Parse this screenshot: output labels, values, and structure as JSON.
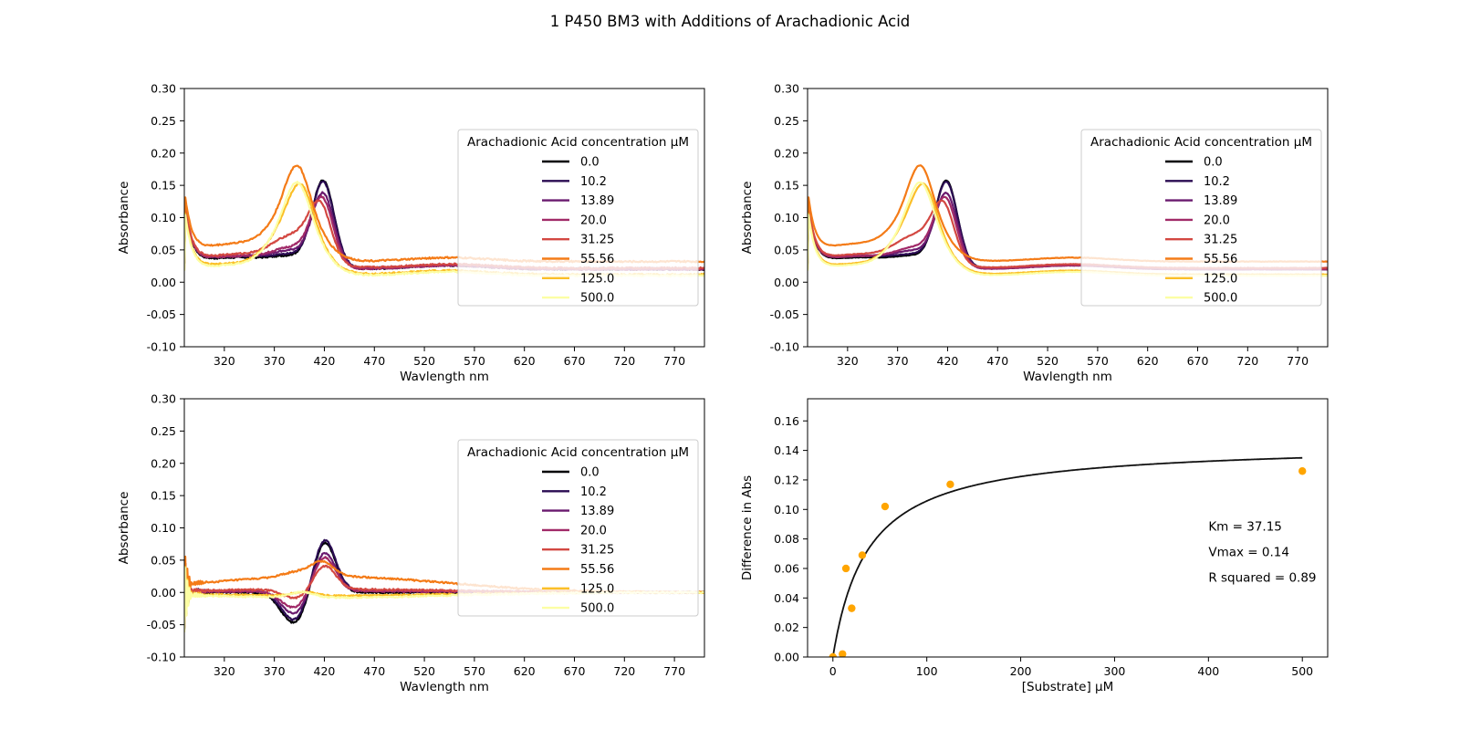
{
  "figure": {
    "title": "1 P450 BM3 with Additions of Arachadionic Acid"
  },
  "colors": {
    "0.0": "#000004",
    "10.2": "#2a0b52",
    "13.89": "#6a1a6f",
    "20.0": "#a12a68",
    "31.25": "#d34842",
    "55.56": "#f47b17",
    "125.0": "#fbbf27",
    "500.0": "#fcfea4",
    "marker": "#ffa500",
    "fit": "#111111"
  },
  "chart_data": [
    {
      "type": "line",
      "panel": "spectra",
      "xlabel": "Wavlength nm",
      "ylabel": "Absorbance",
      "xlim": [
        280,
        800
      ],
      "ylim": [
        -0.1,
        0.3
      ],
      "xticks": [
        320,
        370,
        420,
        470,
        520,
        570,
        620,
        670,
        720,
        770
      ],
      "yticks": [
        -0.1,
        -0.05,
        0.0,
        0.05,
        0.1,
        0.15,
        0.2,
        0.25,
        0.3
      ],
      "legend_title": "Arachadionic Acid concentration µM",
      "legend_position": "center-right",
      "series": [
        {
          "name": "0.0",
          "peak_nm": 419,
          "peak_abs": 0.162,
          "min_abs": 0.04,
          "shoulder_abs": 0.055,
          "tail_abs": 0.02
        },
        {
          "name": "10.2",
          "peak_nm": 419,
          "peak_abs": 0.16,
          "min_abs": 0.042,
          "shoulder_abs": 0.058,
          "tail_abs": 0.021
        },
        {
          "name": "13.89",
          "peak_nm": 419,
          "peak_abs": 0.145,
          "min_abs": 0.043,
          "shoulder_abs": 0.065,
          "tail_abs": 0.02
        },
        {
          "name": "20.0",
          "peak_nm": 418,
          "peak_abs": 0.138,
          "min_abs": 0.042,
          "shoulder_abs": 0.07,
          "tail_abs": 0.02
        },
        {
          "name": "31.25",
          "peak_nm": 416,
          "peak_abs": 0.13,
          "min_abs": 0.045,
          "shoulder_abs": 0.09,
          "tail_abs": 0.022
        },
        {
          "name": "55.56",
          "peak_nm": 393,
          "peak_abs": 0.145,
          "min_abs": 0.062,
          "shoulder_abs": 0.145,
          "tail_abs": 0.032
        },
        {
          "name": "125.0",
          "peak_nm": 397,
          "peak_abs": 0.12,
          "min_abs": 0.03,
          "shoulder_abs": 0.12,
          "tail_abs": 0.012
        },
        {
          "name": "500.0",
          "peak_nm": 393,
          "peak_abs": 0.12,
          "min_abs": 0.028,
          "shoulder_abs": 0.12,
          "tail_abs": 0.01
        }
      ]
    },
    {
      "type": "line",
      "panel": "spectra-smoothed",
      "xlabel": "Wavlength nm",
      "ylabel": "Absorbance",
      "xlim": [
        280,
        800
      ],
      "ylim": [
        -0.1,
        0.3
      ],
      "xticks": [
        320,
        370,
        420,
        470,
        520,
        570,
        620,
        670,
        720,
        770
      ],
      "yticks": [
        -0.1,
        -0.05,
        0.0,
        0.05,
        0.1,
        0.15,
        0.2,
        0.25,
        0.3
      ],
      "legend_title": "Arachadionic Acid concentration µM",
      "legend_position": "center-right",
      "series": [
        {
          "name": "0.0",
          "peak_nm": 419,
          "peak_abs": 0.162,
          "min_abs": 0.04,
          "shoulder_abs": 0.055,
          "tail_abs": 0.02
        },
        {
          "name": "10.2",
          "peak_nm": 419,
          "peak_abs": 0.16,
          "min_abs": 0.042,
          "shoulder_abs": 0.058,
          "tail_abs": 0.021
        },
        {
          "name": "13.89",
          "peak_nm": 419,
          "peak_abs": 0.145,
          "min_abs": 0.043,
          "shoulder_abs": 0.065,
          "tail_abs": 0.02
        },
        {
          "name": "20.0",
          "peak_nm": 418,
          "peak_abs": 0.138,
          "min_abs": 0.042,
          "shoulder_abs": 0.07,
          "tail_abs": 0.02
        },
        {
          "name": "31.25",
          "peak_nm": 416,
          "peak_abs": 0.13,
          "min_abs": 0.045,
          "shoulder_abs": 0.09,
          "tail_abs": 0.022
        },
        {
          "name": "55.56",
          "peak_nm": 393,
          "peak_abs": 0.145,
          "min_abs": 0.062,
          "shoulder_abs": 0.145,
          "tail_abs": 0.032
        },
        {
          "name": "125.0",
          "peak_nm": 397,
          "peak_abs": 0.12,
          "min_abs": 0.03,
          "shoulder_abs": 0.12,
          "tail_abs": 0.012
        },
        {
          "name": "500.0",
          "peak_nm": 393,
          "peak_abs": 0.12,
          "min_abs": 0.028,
          "shoulder_abs": 0.12,
          "tail_abs": 0.01
        }
      ]
    },
    {
      "type": "line",
      "panel": "difference",
      "xlabel": "Wavlength nm",
      "ylabel": "Absorbance",
      "xlim": [
        280,
        800
      ],
      "ylim": [
        -0.1,
        0.3
      ],
      "xticks": [
        320,
        370,
        420,
        470,
        520,
        570,
        620,
        670,
        720,
        770
      ],
      "yticks": [
        -0.1,
        -0.05,
        0.0,
        0.05,
        0.1,
        0.15,
        0.2,
        0.25,
        0.3
      ],
      "legend_title": "Arachadionic Acid concentration µM",
      "legend_position": "center-right",
      "series": [
        {
          "name": "0.0",
          "trough_nm": 390,
          "trough_abs": -0.048,
          "peak_nm": 420,
          "peak_abs": 0.08,
          "offset_abs": 0.0
        },
        {
          "name": "10.2",
          "trough_nm": 390,
          "trough_abs": -0.045,
          "peak_nm": 420,
          "peak_abs": 0.082,
          "offset_abs": 0.003
        },
        {
          "name": "13.89",
          "trough_nm": 390,
          "trough_abs": -0.035,
          "peak_nm": 420,
          "peak_abs": 0.062,
          "offset_abs": 0.003
        },
        {
          "name": "20.0",
          "trough_nm": 390,
          "trough_abs": -0.025,
          "peak_nm": 420,
          "peak_abs": 0.055,
          "offset_abs": 0.002
        },
        {
          "name": "31.25",
          "trough_nm": 392,
          "trough_abs": -0.012,
          "peak_nm": 420,
          "peak_abs": 0.04,
          "offset_abs": 0.005
        },
        {
          "name": "55.56",
          "trough_nm": 392,
          "trough_abs": 0.02,
          "peak_nm": 418,
          "peak_abs": 0.035,
          "offset_abs": 0.025
        },
        {
          "name": "125.0",
          "trough_nm": 392,
          "trough_abs": -0.002,
          "peak_nm": 400,
          "peak_abs": 0.003,
          "offset_abs": -0.005
        },
        {
          "name": "500.0",
          "trough_nm": 392,
          "trough_abs": -0.001,
          "peak_nm": 400,
          "peak_abs": 0.002,
          "offset_abs": -0.008
        }
      ]
    },
    {
      "type": "scatter",
      "panel": "michaelis-menten",
      "xlabel": "[Substrate] µM",
      "ylabel": "Difference in Abs",
      "xlim": [
        -27,
        527
      ],
      "ylim": [
        0,
        0.175
      ],
      "xticks": [
        0,
        100,
        200,
        300,
        400,
        500
      ],
      "yticks": [
        0.0,
        0.02,
        0.04,
        0.06,
        0.08,
        0.1,
        0.12,
        0.14,
        0.16
      ],
      "points": [
        {
          "x": 0.0,
          "y": 0.0
        },
        {
          "x": 10.2,
          "y": 0.002
        },
        {
          "x": 13.89,
          "y": 0.06
        },
        {
          "x": 20.0,
          "y": 0.033
        },
        {
          "x": 31.25,
          "y": 0.069
        },
        {
          "x": 55.56,
          "y": 0.102
        },
        {
          "x": 125.0,
          "y": 0.117
        },
        {
          "x": 500.0,
          "y": 0.126
        }
      ],
      "fit": {
        "km": 37.15,
        "vmax": 0.145,
        "x_range": [
          0,
          500
        ]
      },
      "annotations": [
        "Km = 37.15",
        "Vmax = 0.14",
        "R squared = 0.89"
      ]
    }
  ]
}
